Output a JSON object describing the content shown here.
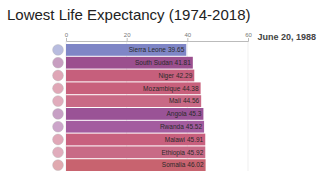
{
  "chart_data": {
    "type": "bar",
    "orientation": "horizontal",
    "title": "Lowest Life Expectancy (1974-2018)",
    "subtitle": "June 20, 1988",
    "categories": [
      "Sierra Leone",
      "South Sudan",
      "Niger",
      "Mozambique",
      "Mali",
      "Angola",
      "Rwanda",
      "Malawi",
      "Ethiopia",
      "Somalia"
    ],
    "values": [
      39.65,
      41.81,
      42.29,
      44.38,
      44.56,
      45.3,
      45.52,
      45.91,
      45.92,
      46.02
    ],
    "colors": [
      "#7f86c6",
      "#9b4f8e",
      "#c65f7c",
      "#c8607c",
      "#c96a86",
      "#9a5396",
      "#a35c9f",
      "#c8607e",
      "#c86a86",
      "#c8636f"
    ],
    "xlim": [
      0,
      60
    ],
    "xticks": [
      0,
      20,
      40,
      60
    ],
    "grid": true,
    "data_labels": true
  }
}
